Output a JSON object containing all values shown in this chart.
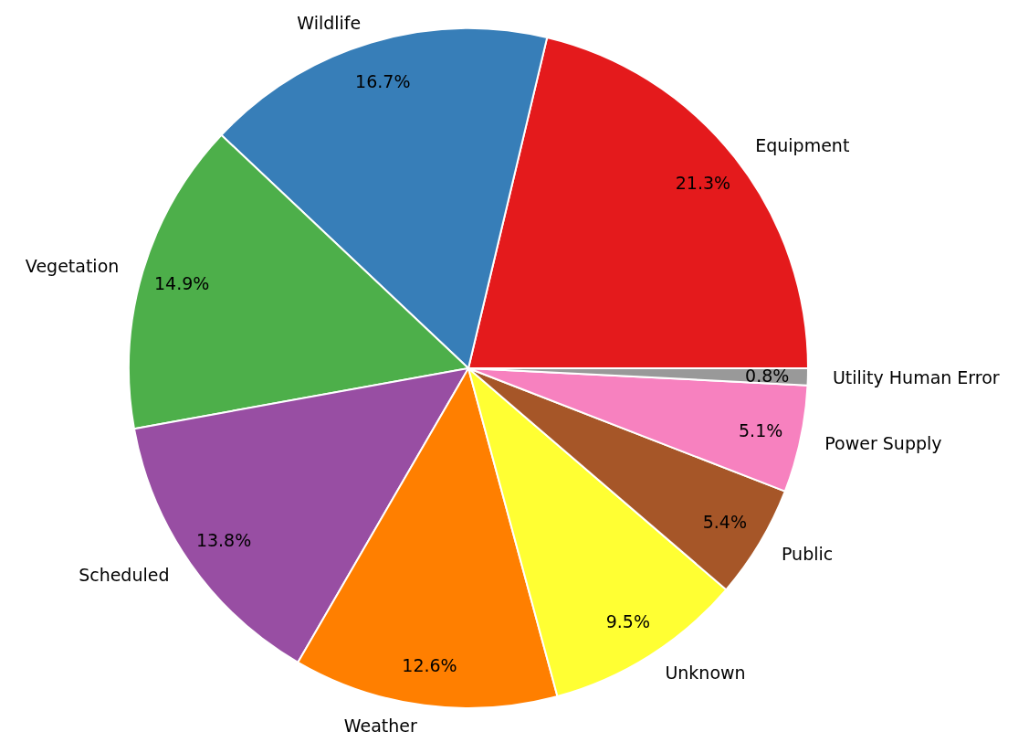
{
  "chart_data": {
    "type": "pie",
    "categories": [
      "Equipment",
      "Wildlife",
      "Vegetation",
      "Scheduled",
      "Weather",
      "Unknown",
      "Public",
      "Power Supply",
      "Utility Human Error"
    ],
    "values": [
      21.3,
      16.7,
      14.9,
      13.8,
      12.6,
      9.5,
      5.4,
      5.1,
      0.8
    ],
    "value_labels": [
      "21.3%",
      "16.7%",
      "14.9%",
      "13.8%",
      "12.6%",
      "9.5%",
      "5.4%",
      "5.1%",
      "0.8%"
    ],
    "colors": [
      "#e41a1c",
      "#377eb8",
      "#4daf4a",
      "#984ea3",
      "#ff7f00",
      "#ffff33",
      "#a65628",
      "#f781bf",
      "#999999"
    ],
    "legend": false
  }
}
